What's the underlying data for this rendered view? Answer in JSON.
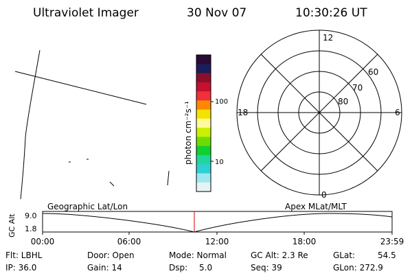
{
  "header": {
    "title": "Ultraviolet Imager",
    "date": "30 Nov 07",
    "time": "10:30:26 UT"
  },
  "colorbar": {
    "label": "photon cm⁻²s⁻¹",
    "tick_labels": [
      "100",
      "10"
    ],
    "colors": [
      "#2a0a36",
      "#1a1e5a",
      "#8a0f2b",
      "#c5102e",
      "#f0303a",
      "#ff8800",
      "#f4e300",
      "#fffb99",
      "#c9f000",
      "#6cdc00",
      "#0fd030",
      "#20d69a",
      "#2dd1d3",
      "#9fe7ef",
      "#e6f3f5"
    ]
  },
  "polar_plot": {
    "labels": {
      "top": "12",
      "bottom": "0",
      "left": "18",
      "right": "6",
      "lat_60": "60",
      "lat_70": "70",
      "lat_80": "80"
    }
  },
  "timeline": {
    "ylabel": "GC Alt",
    "y_ticks": [
      "9.0",
      "1.8"
    ],
    "left_label": "Geographic Lat/Lon",
    "right_label": "Apex MLat/MLT",
    "x_ticks": [
      "00:00",
      "06:00",
      "12:00",
      "18:00",
      "23:59"
    ],
    "marker_color": "#cc0000"
  },
  "info": {
    "row1": [
      "Flt: LBHL",
      "Door: Open",
      "Mode: Normal",
      "GC Alt: 2.3 Re",
      "GLat:",
      "54.5"
    ],
    "row2": [
      "IP: 36.0",
      "Gain: 14",
      "Dsp:",
      "5.0",
      "Seq: 39",
      "GLon: 272.9"
    ]
  }
}
